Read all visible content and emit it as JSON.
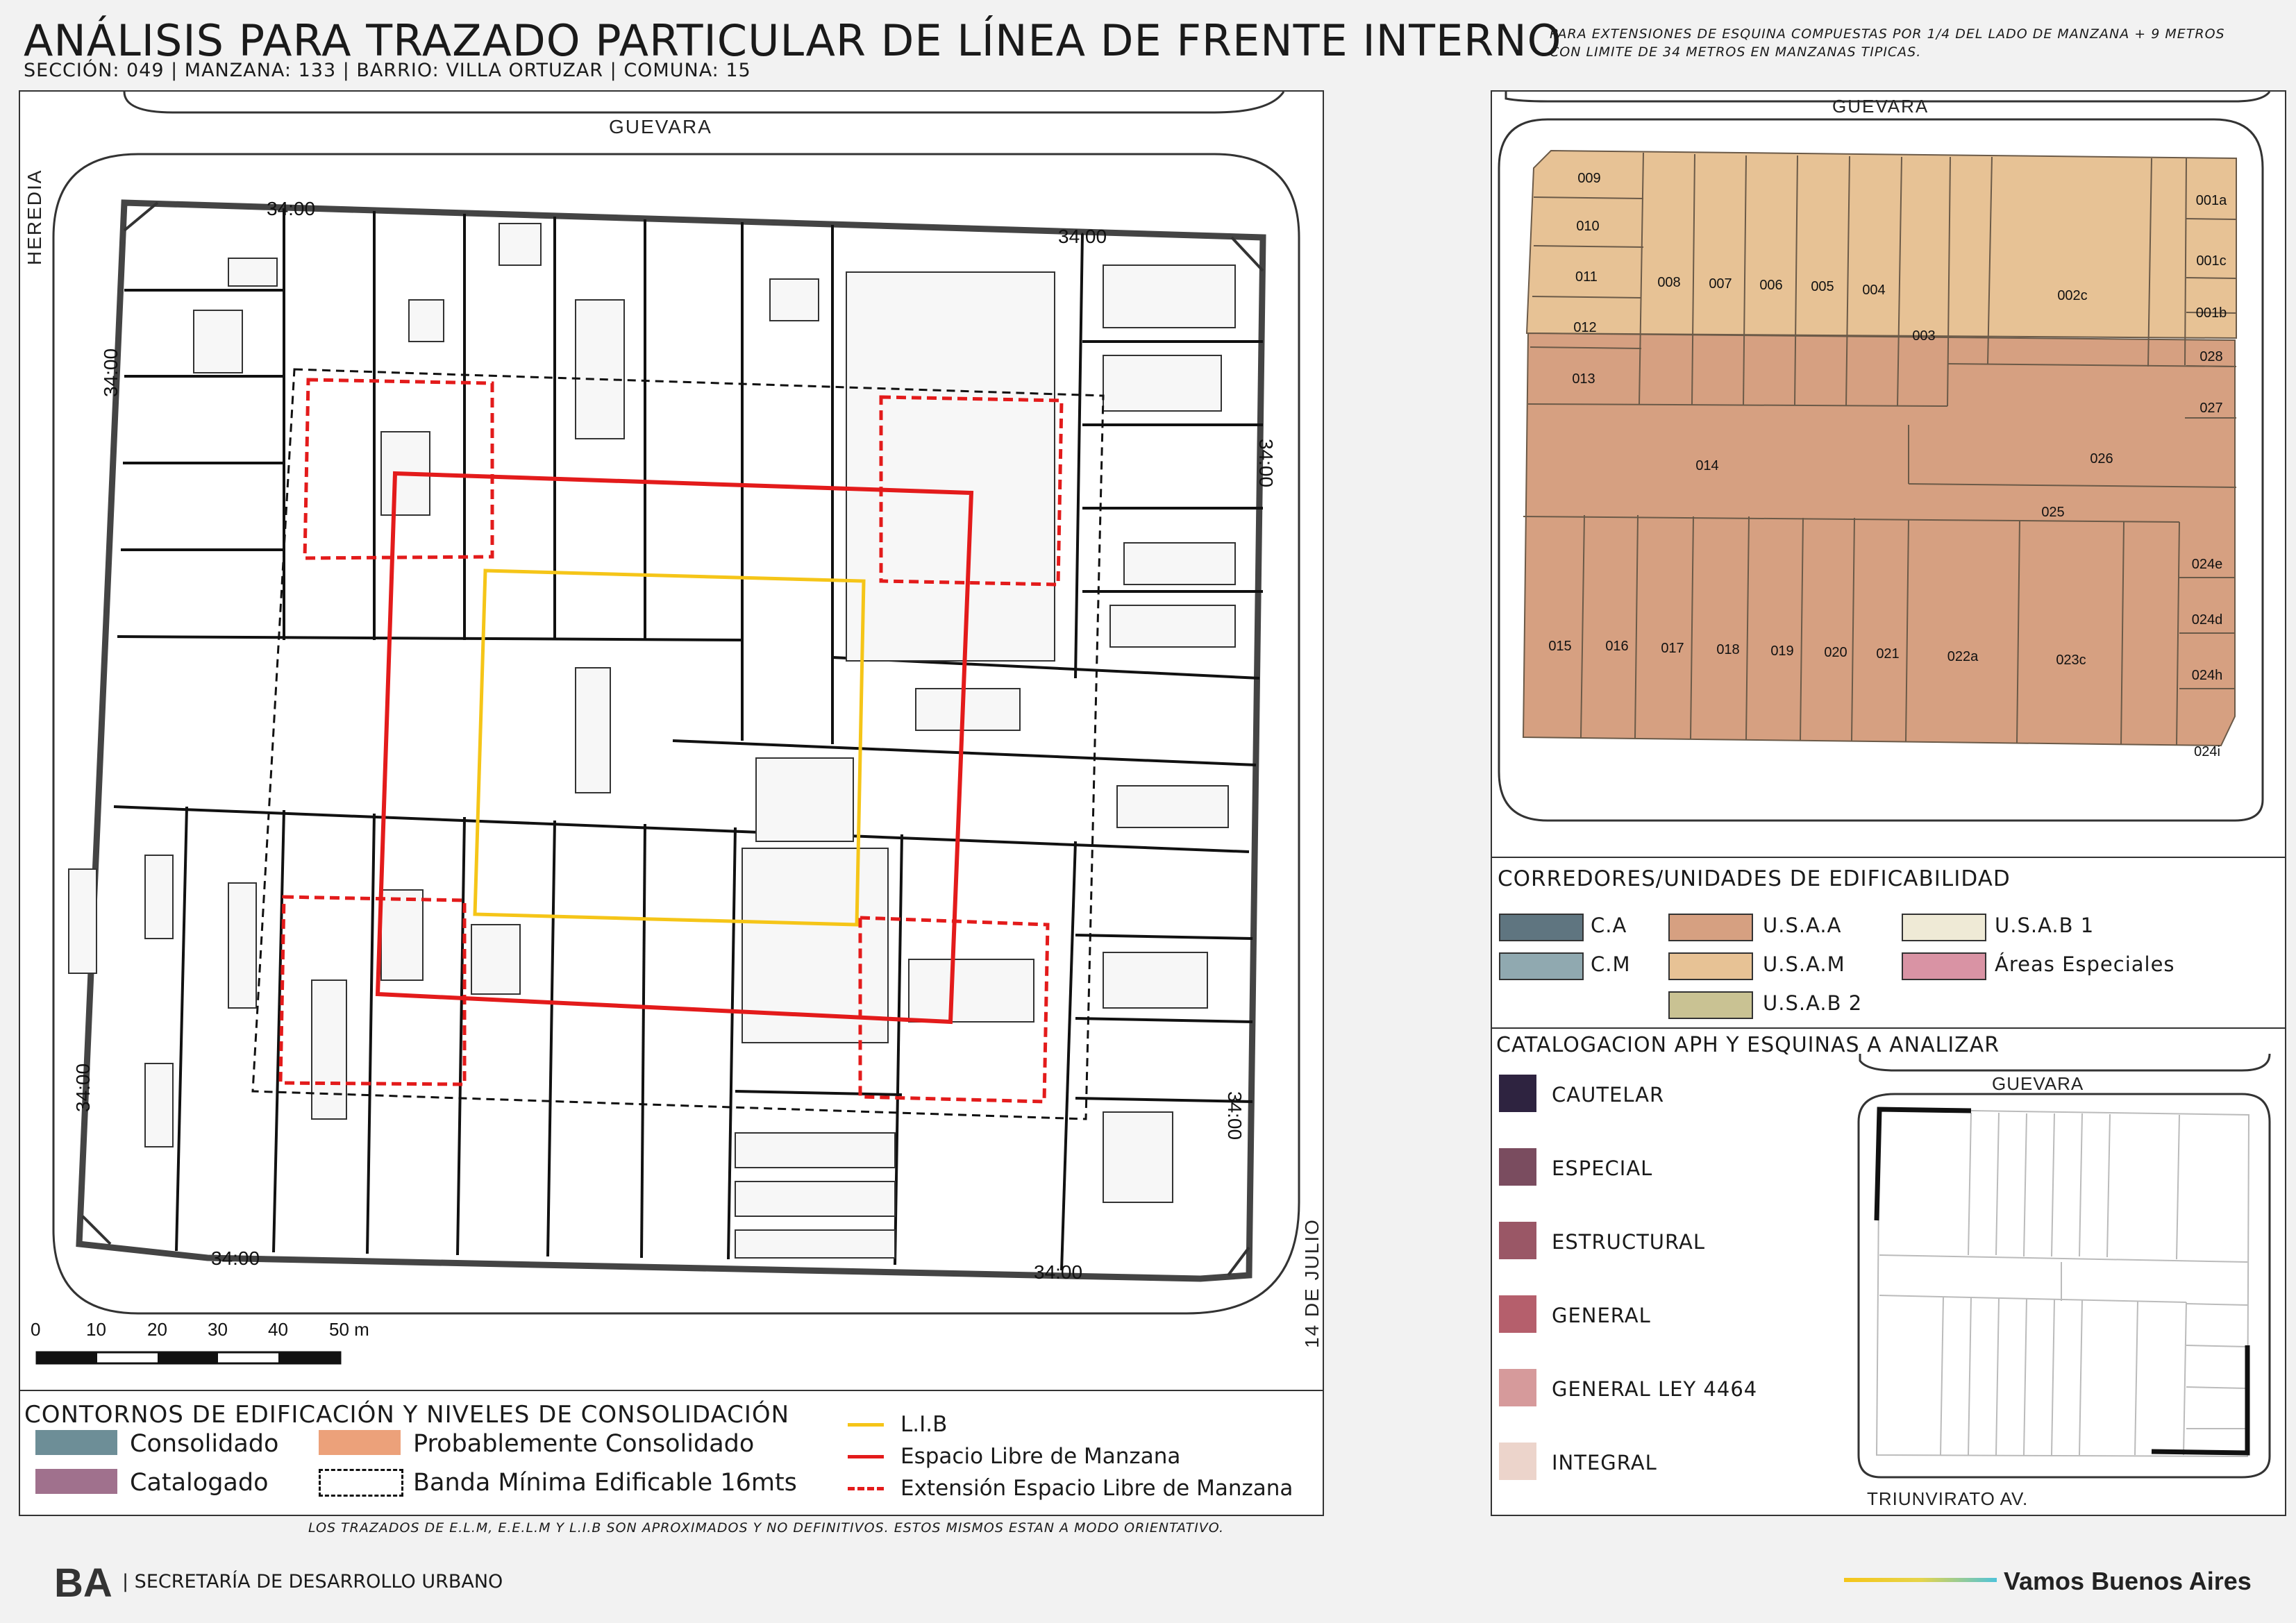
{
  "header": {
    "title": "ANÁLISIS PARA TRAZADO PARTICULAR DE LÍNEA DE FRENTE INTERNO",
    "subtitle": "SECCIÓN: 049 |  MANZANA: 133 | BARRIO: VILLA ORTUZAR | COMUNA: 15",
    "note": "PARA EXTENSIONES DE ESQUINA COMPUESTAS POR 1/4 DEL LADO DE MANZANA + 9 METROS CON LIMITE DE 34 METROS EN MANZANAS TIPICAS."
  },
  "main_map": {
    "streets": {
      "top": "GUEVARA",
      "left": "HEREDIA",
      "right": "14 DE JULIO"
    },
    "dimension_label": "34:00",
    "scale": {
      "ticks": [
        "0",
        "10",
        "20",
        "30",
        "40",
        "50 m"
      ]
    }
  },
  "block_map": {
    "street_top": "GUEVARA",
    "parcels_usam": [
      "009",
      "010",
      "011",
      "012",
      "013",
      "008",
      "007",
      "006",
      "005",
      "004",
      "003",
      "002c",
      "001a",
      "001c",
      "001b",
      "028",
      "027",
      "014",
      "026",
      "025"
    ],
    "parcels_usaa": [
      "015",
      "016",
      "017",
      "018",
      "019",
      "020",
      "021",
      "022a",
      "023c",
      "024e",
      "024d",
      "024h",
      "024i"
    ]
  },
  "corridors": {
    "title": "CORREDORES/UNIDADES DE EDIFICABILIDAD",
    "items": [
      {
        "label": "C.A",
        "color": "#5f7580"
      },
      {
        "label": "C.M",
        "color": "#90a9b0"
      },
      {
        "label": "U.S.A.A",
        "color": "#d6a081"
      },
      {
        "label": "U.S.A.M",
        "color": "#e7c295"
      },
      {
        "label": "U.S.A.B 2",
        "color": "#c9c293"
      },
      {
        "label": "U.S.A.B 1",
        "color": "#efead6"
      },
      {
        "label": "Áreas Especiales",
        "color": "#d993a4"
      }
    ]
  },
  "catalog": {
    "title": "CATALOGACION APH Y ESQUINAS A ANALIZAR",
    "items": [
      {
        "label": "CAUTELAR",
        "color": "#2e2340"
      },
      {
        "label": "ESPECIAL",
        "color": "#7a4c5f"
      },
      {
        "label": "ESTRUCTURAL",
        "color": "#9a5766"
      },
      {
        "label": "GENERAL",
        "color": "#b55f6c"
      },
      {
        "label": "GENERAL LEY 4464",
        "color": "#d69a9b"
      },
      {
        "label": "INTEGRAL",
        "color": "#ecd4cb"
      }
    ],
    "mini_map": {
      "street_top": "GUEVARA",
      "street_bottom": "TRIUNVIRATO AV."
    }
  },
  "consolidation_legend": {
    "title": "CONTORNOS DE EDIFICACIÓN Y NIVELES DE CONSOLIDACIÓN",
    "items": [
      {
        "label": "Consolidado",
        "color": "#6d8e97"
      },
      {
        "label": "Probablemente Consolidado",
        "color": "#eca17a"
      },
      {
        "label": "Catalogado",
        "color": "#a0718d"
      },
      {
        "label": "Banda Mínima Edificable 16mts",
        "color": "#ffffff"
      }
    ],
    "lines": [
      {
        "label": "L.I.B",
        "color": "#f5c518"
      },
      {
        "label": "Espacio Libre de Manzana",
        "color": "#e31b1b"
      },
      {
        "label": "Extensión Espacio Libre de Manzana",
        "color": "#e31b1b"
      }
    ]
  },
  "footer": {
    "disclaimer": "LOS TRAZADOS DE E.L.M, E.E.L.M Y L.I.B SON APROXIMADOS Y NO DEFINITIVOS. ESTOS MISMOS ESTAN A MODO ORIENTATIVO.",
    "logo_text": "BA",
    "secretaria": "| SECRETARÍA DE DESARROLLO URBANO",
    "slogan": "Vamos Buenos Aires"
  }
}
